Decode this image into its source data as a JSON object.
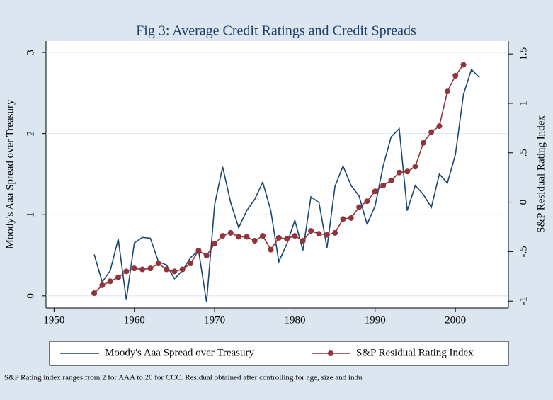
{
  "chart_data": {
    "type": "line",
    "title": "Fig 3: Average Credit Ratings and Credit Spreads",
    "ylabel": "Moody's Aaa Spread over Treasury",
    "y2label": "S&P Residual Rating Index",
    "note": "S&P Rating index ranges from 2 for AAA to 20 for CCC. Residual obtained after controlling for age, size and indu",
    "x": [
      1955,
      1956,
      1957,
      1958,
      1959,
      1960,
      1961,
      1962,
      1963,
      1964,
      1965,
      1966,
      1967,
      1968,
      1969,
      1970,
      1971,
      1972,
      1973,
      1974,
      1975,
      1976,
      1977,
      1978,
      1979,
      1980,
      1981,
      1982,
      1983,
      1984,
      1985,
      1986,
      1987,
      1988,
      1989,
      1990,
      1991,
      1992,
      1993,
      1994,
      1995,
      1996,
      1997,
      1998,
      1999,
      2000,
      2001,
      2002,
      2003
    ],
    "xlim": [
      1949,
      2006.6
    ],
    "xticks": [
      1950,
      1960,
      1970,
      1980,
      1990,
      2000
    ],
    "ylim": [
      -0.15,
      3.14
    ],
    "yticks": [
      0,
      1,
      2,
      3
    ],
    "y2lim": [
      -1.07,
      1.63
    ],
    "y2ticks": [
      -1,
      {
        "value": -0.5,
        "label": "-.5"
      },
      0,
      {
        "value": 0.5,
        "label": ".5"
      },
      1,
      1.5
    ],
    "grid": true,
    "legend": "bottom",
    "series": [
      {
        "name": "Moody's Aaa Spread over Treasury",
        "color": "#1a476f",
        "marker": false,
        "values": [
          0.51,
          0.17,
          0.31,
          0.7,
          -0.05,
          0.65,
          0.72,
          0.71,
          0.42,
          0.38,
          0.21,
          0.31,
          0.47,
          0.56,
          -0.08,
          1.12,
          1.59,
          1.15,
          0.84,
          1.05,
          1.19,
          1.4,
          1.05,
          0.42,
          0.64,
          0.93,
          0.56,
          1.22,
          1.15,
          0.59,
          1.35,
          1.6,
          1.36,
          1.23,
          0.88,
          1.11,
          1.6,
          1.96,
          2.06,
          1.05,
          1.36,
          1.25,
          1.09,
          1.5,
          1.39,
          1.74,
          2.48,
          2.79,
          2.69
        ]
      },
      {
        "name": "S&P Residual Rating Index",
        "color": "#90353b",
        "marker": true,
        "axis": "y2",
        "values": [
          -0.92,
          -0.84,
          -0.8,
          -0.76,
          -0.7,
          -0.67,
          -0.68,
          -0.67,
          -0.62,
          -0.68,
          -0.7,
          -0.68,
          -0.62,
          -0.49,
          -0.54,
          -0.42,
          -0.34,
          -0.31,
          -0.35,
          -0.35,
          -0.39,
          -0.34,
          -0.48,
          -0.36,
          -0.37,
          -0.34,
          -0.39,
          -0.29,
          -0.32,
          -0.33,
          -0.31,
          -0.17,
          -0.16,
          -0.05,
          0.01,
          0.11,
          0.17,
          0.22,
          0.3,
          0.31,
          0.36,
          0.6,
          0.71,
          0.77,
          1.12,
          1.28,
          1.39,
          null,
          null
        ]
      }
    ]
  }
}
